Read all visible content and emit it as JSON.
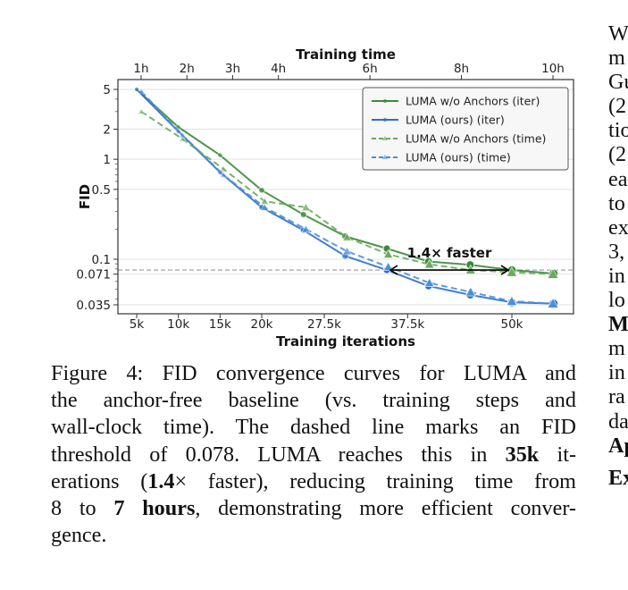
{
  "chart_data": {
    "type": "line",
    "title": "",
    "xlabel": "Training iterations",
    "x2label": "Training time",
    "ylabel": "FID",
    "yscale": "log",
    "ylim": [
      0.032,
      5.6
    ],
    "xlim_iter_k": [
      2.7,
      58
    ],
    "xlim_time_h": [
      0.6,
      10.4
    ],
    "x_ticks": [
      "5k",
      "10k",
      "15k",
      "20k",
      "27.5k",
      "37.5k",
      "50k"
    ],
    "x_tick_values_k": [
      5,
      10,
      15,
      20,
      27.5,
      37.5,
      50
    ],
    "x2_ticks": [
      "1h",
      "2h",
      "3h",
      "4h",
      "6h",
      "8h",
      "10h"
    ],
    "x2_tick_values_h": [
      1,
      2,
      3,
      4,
      6,
      8,
      10
    ],
    "y_ticks": [
      "5",
      "2",
      "1",
      "0.5",
      "0.1",
      "0.071",
      "0.035"
    ],
    "y_tick_values": [
      5,
      2,
      1,
      0.5,
      0.1,
      0.071,
      0.035
    ],
    "grid": true,
    "legend_position": "top-right",
    "threshold": {
      "value": 0.078,
      "style": "dashed"
    },
    "annotation": {
      "text": "1.4× faster",
      "from_k": 35,
      "to_k": 50
    },
    "series": [
      {
        "name": "LUMA w/o Anchors (iter)",
        "axis": "iter",
        "color": "#3a8a3a",
        "style": "solid",
        "marker": "circle",
        "x": [
          5,
          10,
          15,
          20,
          25,
          30,
          35,
          40,
          45,
          50,
          55
        ],
        "y": [
          5.0,
          2.1,
          1.1,
          0.49,
          0.28,
          0.17,
          0.128,
          0.095,
          0.088,
          0.078,
          0.072
        ]
      },
      {
        "name": "LUMA (ours) (iter)",
        "axis": "iter",
        "color": "#2f6fc8",
        "style": "solid",
        "marker": "circle",
        "x": [
          5,
          10,
          15,
          20,
          25,
          30,
          35,
          40,
          45,
          50,
          55
        ],
        "y": [
          5.0,
          1.9,
          0.74,
          0.33,
          0.195,
          0.108,
          0.078,
          0.054,
          0.044,
          0.037,
          0.036
        ]
      },
      {
        "name": "LUMA w/o Anchors (time)",
        "axis": "time",
        "color": "#6aaa5a",
        "style": "dashed",
        "marker": "triangle",
        "x": [
          1.0,
          1.9,
          2.8,
          3.7,
          4.6,
          5.5,
          6.4,
          7.3,
          8.2,
          9.1,
          10.0
        ],
        "y": [
          3.0,
          1.6,
          0.8,
          0.38,
          0.33,
          0.165,
          0.112,
          0.089,
          0.078,
          0.074,
          0.071
        ]
      },
      {
        "name": "LUMA (ours) (time)",
        "axis": "time",
        "color": "#4a90d9",
        "style": "dashed",
        "marker": "triangle",
        "x": [
          1.0,
          1.9,
          2.8,
          3.7,
          4.6,
          5.5,
          6.4,
          7.3,
          8.2,
          9.1,
          10.0
        ],
        "y": [
          4.8,
          1.75,
          0.7,
          0.33,
          0.2,
          0.12,
          0.084,
          0.058,
          0.047,
          0.038,
          0.036
        ]
      }
    ]
  },
  "caption": {
    "lines": [
      [
        {
          "t": "Figure 4: FID convergence curves for LUMA and"
        }
      ],
      [
        {
          "t": "the anchor-free baseline (vs.  training steps and"
        }
      ],
      [
        {
          "t": "wall-clock time).  The dashed line marks an FID"
        }
      ],
      [
        {
          "t": "threshold of 0.078. LUMA reaches this in "
        },
        {
          "t": "35k",
          "b": true
        },
        {
          "t": " it-"
        }
      ],
      [
        {
          "t": "erations ("
        },
        {
          "t": "1.4",
          "b": true
        },
        {
          "t": "× faster), reducing training time from"
        }
      ],
      [
        {
          "t": "8 to "
        },
        {
          "t": "7 hours",
          "b": true
        },
        {
          "t": ", demonstrating more efficient conver-"
        }
      ],
      [
        {
          "t": "gence."
        }
      ]
    ]
  },
  "right_column": {
    "fragments": [
      {
        "t": "W"
      },
      {
        "t": "m"
      },
      {
        "t": "Gu"
      },
      {
        "t": "(2"
      },
      {
        "t": "tio"
      },
      {
        "t": "(2"
      },
      {
        "t": "ea"
      },
      {
        "t": "to"
      },
      {
        "t": "ex"
      },
      {
        "t": "3,"
      },
      {
        "t": "in"
      },
      {
        "t": "lo"
      },
      {
        "t": "M",
        "b": true
      },
      {
        "t": "m"
      },
      {
        "t": "in"
      },
      {
        "t": "ra"
      },
      {
        "t": "da"
      },
      {
        "t": "Ap",
        "b": true
      },
      {
        "t": "Ex",
        "b": true,
        "gap": true
      }
    ]
  }
}
